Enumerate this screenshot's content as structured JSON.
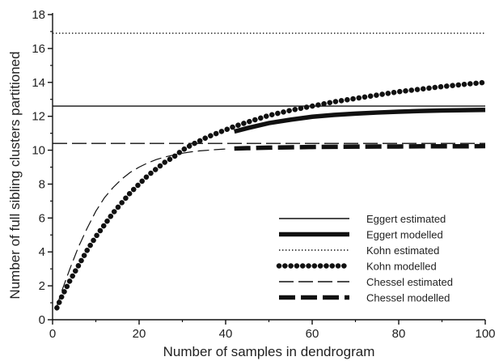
{
  "chart_data": {
    "type": "line",
    "xlabel": "Number of samples in dendrogram",
    "ylabel": "Number of full sibling clusters partitioned",
    "xlim": [
      0,
      100
    ],
    "ylim": [
      0,
      18
    ],
    "x_ticks": [
      "0",
      "20",
      "40",
      "60",
      "80",
      "100"
    ],
    "y_ticks": [
      "0",
      "2",
      "4",
      "6",
      "8",
      "10",
      "12",
      "14",
      "16",
      "18"
    ],
    "grid": false,
    "legend_position": "bottom-right",
    "series": [
      {
        "name": "Eggert estimated",
        "style": "thin-solid",
        "x": [
          0,
          100
        ],
        "y": [
          12.6,
          12.6
        ]
      },
      {
        "name": "Eggert modelled",
        "style": "thick-solid",
        "x": [
          42,
          45,
          50,
          55,
          60,
          65,
          70,
          75,
          80,
          85,
          90,
          95,
          100
        ],
        "y": [
          11.1,
          11.3,
          11.6,
          11.8,
          11.97,
          12.08,
          12.16,
          12.22,
          12.27,
          12.31,
          12.34,
          12.36,
          12.38
        ]
      },
      {
        "name": "Kohn estimated",
        "style": "thin-dotted",
        "x": [
          0,
          100
        ],
        "y": [
          16.9,
          16.9
        ]
      },
      {
        "name": "Kohn modelled",
        "style": "large-dots",
        "x": [
          1,
          2,
          4,
          6,
          8,
          10,
          12,
          14,
          16,
          18,
          20,
          22,
          24,
          26,
          28,
          30,
          32,
          34,
          36,
          38,
          40,
          42,
          45,
          50,
          55,
          60,
          65,
          70,
          75,
          80,
          85,
          90,
          95,
          100
        ],
        "y": [
          0.7,
          1.3,
          2.3,
          3.2,
          4.1,
          4.9,
          5.6,
          6.3,
          6.9,
          7.5,
          8.0,
          8.5,
          8.9,
          9.3,
          9.6,
          10.0,
          10.3,
          10.55,
          10.8,
          11.0,
          11.2,
          11.4,
          11.65,
          12.05,
          12.35,
          12.6,
          12.85,
          13.05,
          13.25,
          13.45,
          13.6,
          13.75,
          13.88,
          14.0
        ]
      },
      {
        "name": "Chessel estimated",
        "style": "thin-dashed",
        "x": [
          0,
          100
        ],
        "y": [
          10.4,
          10.4
        ]
      },
      {
        "name": "Chessel modelled",
        "style": "thick-dashed",
        "x": [
          42,
          45,
          50,
          55,
          60,
          65,
          70,
          75,
          80,
          85,
          90,
          95,
          100
        ],
        "y": [
          10.1,
          10.12,
          10.15,
          10.17,
          10.19,
          10.2,
          10.21,
          10.22,
          10.22,
          10.23,
          10.23,
          10.23,
          10.24
        ]
      }
    ],
    "extra_lines": [
      {
        "style": "thin-long-dash",
        "x": [
          1,
          2,
          4,
          6,
          8,
          10,
          12,
          14,
          16,
          18,
          20,
          22,
          24,
          26,
          28,
          30,
          32,
          34,
          36,
          38,
          40
        ],
        "y": [
          0.8,
          1.6,
          3.0,
          4.3,
          5.4,
          6.4,
          7.2,
          7.8,
          8.3,
          8.7,
          9.0,
          9.25,
          9.45,
          9.6,
          9.72,
          9.82,
          9.9,
          9.96,
          10.0,
          10.04,
          10.07
        ]
      }
    ]
  }
}
